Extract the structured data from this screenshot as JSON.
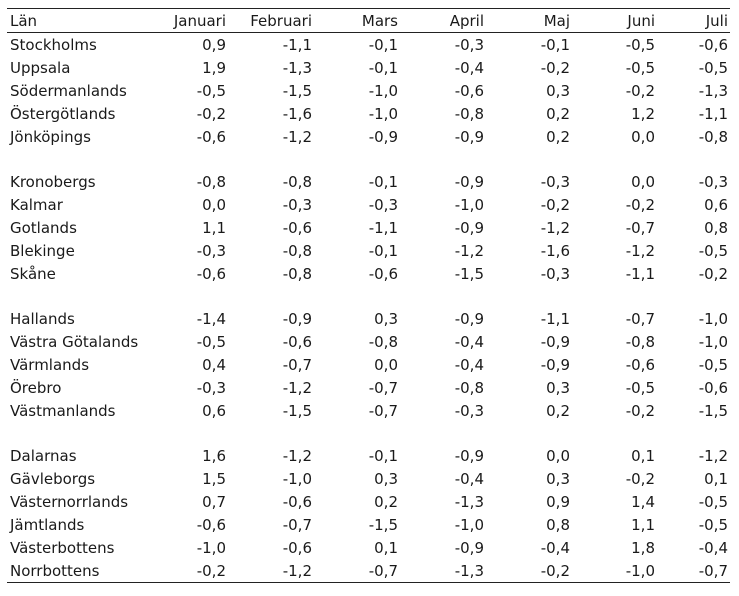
{
  "header": {
    "lan": "Län",
    "months": [
      "Januari",
      "Februari",
      "Mars",
      "April",
      "Maj",
      "Juni",
      "Juli"
    ]
  },
  "groups": [
    {
      "rows": [
        {
          "lan": "Stockholms",
          "values": [
            "0,9",
            "-1,1",
            "-0,1",
            "-0,3",
            "-0,1",
            "-0,5",
            "-0,6"
          ]
        },
        {
          "lan": "Uppsala",
          "values": [
            "1,9",
            "-1,3",
            "-0,1",
            "-0,4",
            "-0,2",
            "-0,5",
            "-0,5"
          ]
        },
        {
          "lan": "Södermanlands",
          "values": [
            "-0,5",
            "-1,5",
            "-1,0",
            "-0,6",
            "0,3",
            "-0,2",
            "-1,3"
          ]
        },
        {
          "lan": "Östergötlands",
          "values": [
            "-0,2",
            "-1,6",
            "-1,0",
            "-0,8",
            "0,2",
            "1,2",
            "-1,1"
          ]
        },
        {
          "lan": "Jönköpings",
          "values": [
            "-0,6",
            "-1,2",
            "-0,9",
            "-0,9",
            "0,2",
            "0,0",
            "-0,8"
          ]
        }
      ]
    },
    {
      "rows": [
        {
          "lan": "Kronobergs",
          "values": [
            "-0,8",
            "-0,8",
            "-0,1",
            "-0,9",
            "-0,3",
            "0,0",
            "-0,3"
          ]
        },
        {
          "lan": "Kalmar",
          "values": [
            "0,0",
            "-0,3",
            "-0,3",
            "-1,0",
            "-0,2",
            "-0,2",
            "0,6"
          ]
        },
        {
          "lan": "Gotlands",
          "values": [
            "1,1",
            "-0,6",
            "-1,1",
            "-0,9",
            "-1,2",
            "-0,7",
            "0,8"
          ]
        },
        {
          "lan": "Blekinge",
          "values": [
            "-0,3",
            "-0,8",
            "-0,1",
            "-1,2",
            "-1,6",
            "-1,2",
            "-0,5"
          ]
        },
        {
          "lan": "Skåne",
          "values": [
            "-0,6",
            "-0,8",
            "-0,6",
            "-1,5",
            "-0,3",
            "-1,1",
            "-0,2"
          ]
        }
      ]
    },
    {
      "rows": [
        {
          "lan": "Hallands",
          "values": [
            "-1,4",
            "-0,9",
            "0,3",
            "-0,9",
            "-1,1",
            "-0,7",
            "-1,0"
          ]
        },
        {
          "lan": "Västra Götalands",
          "values": [
            "-0,5",
            "-0,6",
            "-0,8",
            "-0,4",
            "-0,9",
            "-0,8",
            "-1,0"
          ]
        },
        {
          "lan": "Värmlands",
          "values": [
            "0,4",
            "-0,7",
            "0,0",
            "-0,4",
            "-0,9",
            "-0,6",
            "-0,5"
          ]
        },
        {
          "lan": "Örebro",
          "values": [
            "-0,3",
            "-1,2",
            "-0,7",
            "-0,8",
            "0,3",
            "-0,5",
            "-0,6"
          ]
        },
        {
          "lan": "Västmanlands",
          "values": [
            "0,6",
            "-1,5",
            "-0,7",
            "-0,3",
            "0,2",
            "-0,2",
            "-1,5"
          ]
        }
      ]
    },
    {
      "rows": [
        {
          "lan": "Dalarnas",
          "values": [
            "1,6",
            "-1,2",
            "-0,1",
            "-0,9",
            "0,0",
            "0,1",
            "-1,2"
          ]
        },
        {
          "lan": "Gävleborgs",
          "values": [
            "1,5",
            "-1,0",
            "0,3",
            "-0,4",
            "0,3",
            "-0,2",
            "0,1"
          ]
        },
        {
          "lan": "Västernorrlands",
          "values": [
            "0,7",
            "-0,6",
            "0,2",
            "-1,3",
            "0,9",
            "1,4",
            "-0,5"
          ]
        },
        {
          "lan": "Jämtlands",
          "values": [
            "-0,6",
            "-0,7",
            "-1,5",
            "-1,0",
            "0,8",
            "1,1",
            "-0,5"
          ]
        },
        {
          "lan": "Västerbottens",
          "values": [
            "-1,0",
            "-0,6",
            "0,1",
            "-0,9",
            "-0,4",
            "1,8",
            "-0,4"
          ]
        },
        {
          "lan": "Norrbottens",
          "values": [
            "-0,2",
            "-1,2",
            "-0,7",
            "-1,3",
            "-0,2",
            "-1,0",
            "-0,7"
          ]
        }
      ]
    }
  ]
}
